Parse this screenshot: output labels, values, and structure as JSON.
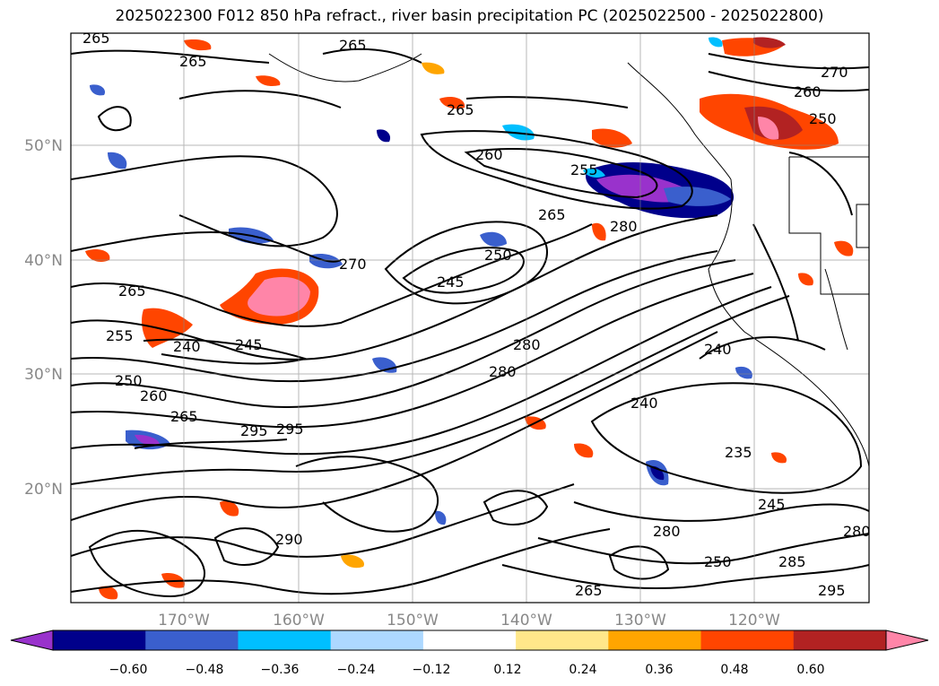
{
  "title": "2025022300 F012 850 hPa refract., river basin precipitation PC (2025022500 - 2025022800)",
  "lat_labels": [
    "50°N",
    "40°N",
    "30°N",
    "20°N"
  ],
  "lon_labels": [
    "170°W",
    "160°W",
    "150°W",
    "140°W",
    "130°W",
    "120°W"
  ],
  "contour_labels": [
    "265",
    "265",
    "265",
    "270",
    "260",
    "265",
    "260",
    "255",
    "250",
    "265",
    "280",
    "270",
    "265",
    "255",
    "245",
    "250",
    "280",
    "245",
    "240",
    "250",
    "260",
    "265",
    "280",
    "240",
    "235",
    "245",
    "280",
    "250",
    "295",
    "295",
    "240",
    "285",
    "280",
    "290",
    "265",
    "295"
  ],
  "colorbar": {
    "ticks": [
      "−0.60",
      "−0.48",
      "−0.36",
      "−0.24",
      "−0.12",
      "0.12",
      "0.24",
      "0.36",
      "0.48",
      "0.60"
    ],
    "colors": [
      "#9932cc",
      "#00008b",
      "#3a5fcd",
      "#00bfff",
      "#add8ff",
      "#ffffff",
      "#ffe78a",
      "#ffa500",
      "#ff4500",
      "#b22222",
      "#ff85a8"
    ]
  }
}
